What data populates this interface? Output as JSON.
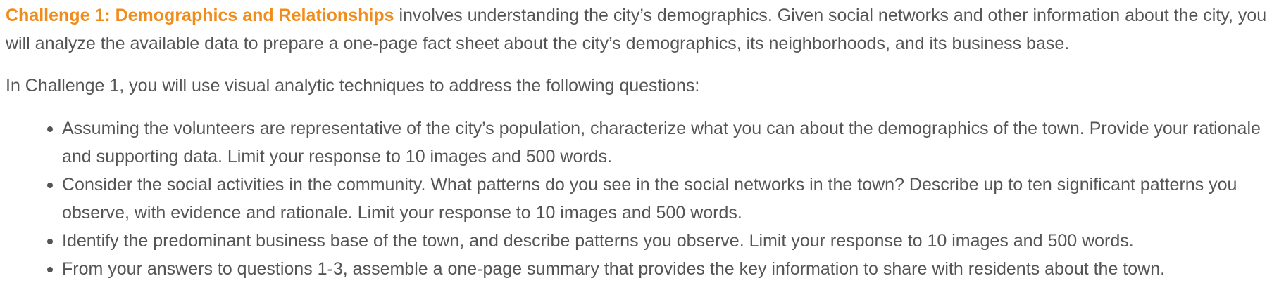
{
  "intro": {
    "highlight": "Challenge 1: Demographics and Relationships",
    "rest": " involves understanding the city’s demographics. Given social networks and other information about the city, you will analyze the available data to prepare a one-page fact sheet about the city’s demographics, its neighborhoods, and its business base."
  },
  "lead": "In Challenge 1, you will use visual analytic techniques to address the following questions:",
  "questions": [
    "Assuming the volunteers are representative of the city’s population, characterize what you can about the demographics of the town. Provide your rationale and supporting data. Limit your response to 10 images and 500 words.",
    "Consider the social activities in the community. What patterns do you see in the social networks in the town? Describe up to ten significant patterns you observe, with evidence and rationale. Limit your response to 10 images and 500 words.",
    "Identify the predominant business base of the town, and describe patterns you observe. Limit your response to 10 images and 500 words.",
    "From your answers to questions 1-3, assemble a one-page summary that provides the key information to share with residents about the town."
  ]
}
